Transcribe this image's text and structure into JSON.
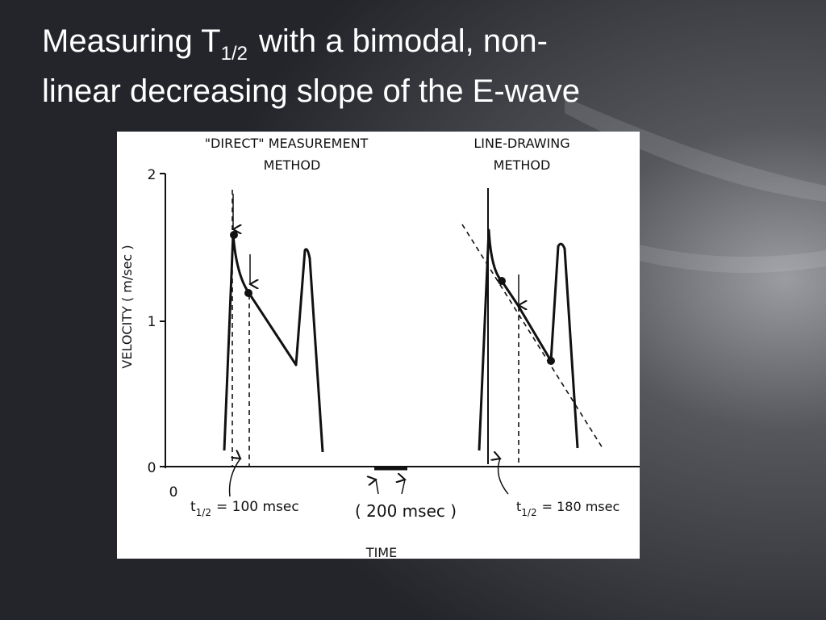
{
  "slide": {
    "title": {
      "line1_start": "Measuring T",
      "line1_subscript": "1/2",
      "line1_end": "with a bimodal, non-",
      "line2": "linear decreasing slope of the E-wave"
    },
    "figure": {
      "left_heading": [
        "\"DIRECT\" MEASUREMENT",
        "METHOD"
      ],
      "right_heading": [
        "LINE-DRAWING",
        "METHOD"
      ],
      "y_axis_label": "VELOCITY  ( m/sec )",
      "y_ticks": [
        "2",
        "1",
        "0"
      ],
      "x_origin": "0",
      "left_note": {
        "symbol": "t",
        "subscript": "1/2",
        "text": "= 100 msec"
      },
      "scale_note": "( 200  msec )",
      "right_note": {
        "symbol": "t",
        "subscript": "1/2",
        "text": "= 180 msec"
      },
      "x_axis_label": "TIME"
    }
  }
}
